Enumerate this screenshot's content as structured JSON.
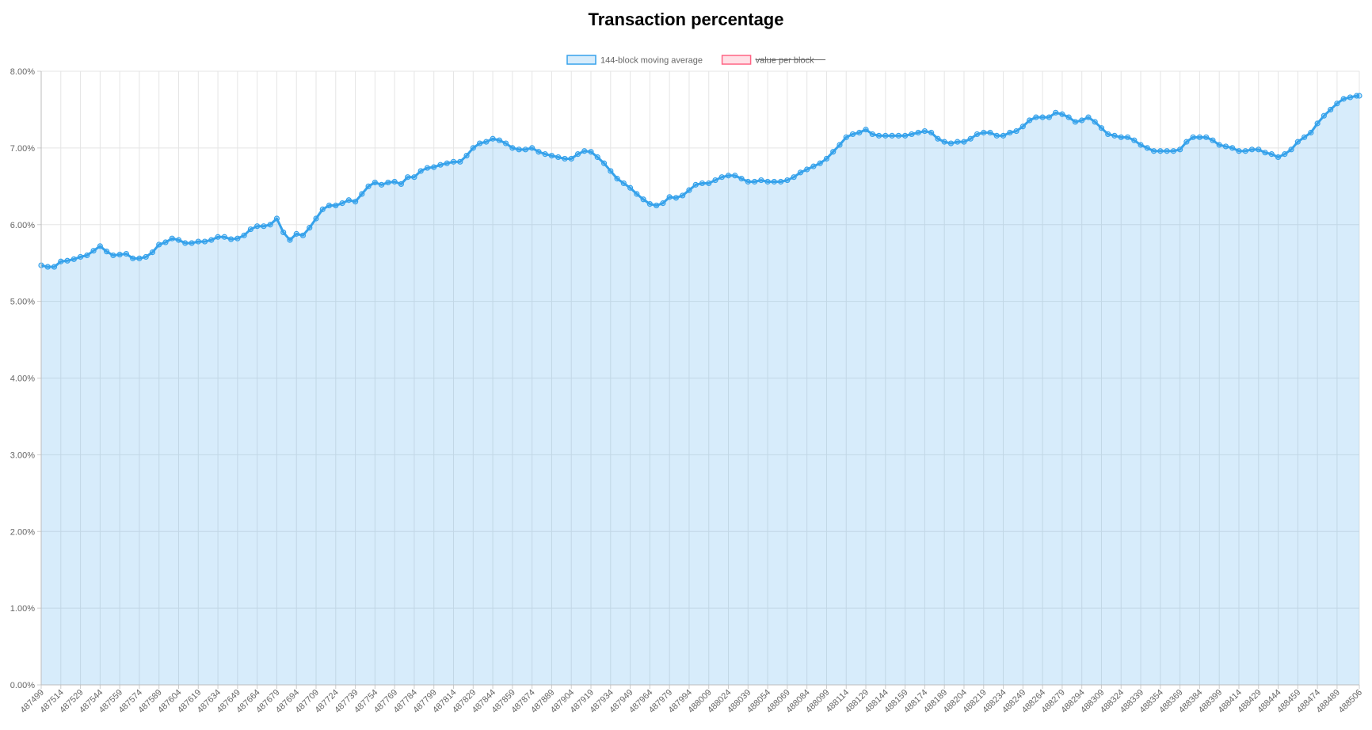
{
  "chart_data": {
    "type": "area",
    "title": "Transaction percentage",
    "legend": {
      "placement": "top-center",
      "items": [
        {
          "label": "144-block moving average",
          "color": "#36a2eb",
          "hidden": false
        },
        {
          "label": "value per block",
          "color": "#ff6384",
          "hidden": true
        }
      ]
    },
    "grid": true,
    "y_axis": {
      "min": 0,
      "max": 8,
      "step": 1,
      "format": "percent",
      "tick_labels": [
        "0.00%",
        "1.00%",
        "2.00%",
        "3.00%",
        "4.00%",
        "5.00%",
        "6.00%",
        "7.00%",
        "8.00%"
      ]
    },
    "x_axis": {
      "first_block": 487499,
      "last_block": 488506,
      "tick_step": 15,
      "tick_labels": [
        "487499",
        "487514",
        "487529",
        "487544",
        "487559",
        "487574",
        "487589",
        "487604",
        "487619",
        "487634",
        "487649",
        "487664",
        "487679",
        "487694",
        "487709",
        "487724",
        "487739",
        "487754",
        "487769",
        "487784",
        "487799",
        "487814",
        "487829",
        "487844",
        "487859",
        "487874",
        "487889",
        "487904",
        "487919",
        "487934",
        "487949",
        "487964",
        "487979",
        "487994",
        "488009",
        "488024",
        "488039",
        "488054",
        "488069",
        "488084",
        "488099",
        "488114",
        "488129",
        "488144",
        "488159",
        "488174",
        "488189",
        "488204",
        "488219",
        "488234",
        "488249",
        "488264",
        "488279",
        "488294",
        "488309",
        "488324",
        "488339",
        "488354",
        "488369",
        "488384",
        "488399",
        "488414",
        "488429",
        "488444",
        "488459",
        "488474",
        "488489",
        "488506"
      ]
    },
    "series": [
      {
        "name": "144-block moving average",
        "color": "#36a2eb",
        "fill": "rgba(54,162,235,0.2)",
        "points": [
          [
            487499,
            5.47
          ],
          [
            487504,
            5.45
          ],
          [
            487509,
            5.45
          ],
          [
            487514,
            5.52
          ],
          [
            487519,
            5.53
          ],
          [
            487524,
            5.55
          ],
          [
            487529,
            5.58
          ],
          [
            487534,
            5.6
          ],
          [
            487539,
            5.66
          ],
          [
            487544,
            5.72
          ],
          [
            487549,
            5.65
          ],
          [
            487554,
            5.6
          ],
          [
            487559,
            5.61
          ],
          [
            487564,
            5.62
          ],
          [
            487569,
            5.56
          ],
          [
            487574,
            5.56
          ],
          [
            487579,
            5.58
          ],
          [
            487584,
            5.64
          ],
          [
            487589,
            5.74
          ],
          [
            487594,
            5.77
          ],
          [
            487599,
            5.82
          ],
          [
            487604,
            5.8
          ],
          [
            487609,
            5.76
          ],
          [
            487614,
            5.76
          ],
          [
            487619,
            5.78
          ],
          [
            487624,
            5.78
          ],
          [
            487629,
            5.8
          ],
          [
            487634,
            5.84
          ],
          [
            487639,
            5.84
          ],
          [
            487644,
            5.81
          ],
          [
            487649,
            5.82
          ],
          [
            487654,
            5.86
          ],
          [
            487659,
            5.94
          ],
          [
            487664,
            5.98
          ],
          [
            487669,
            5.98
          ],
          [
            487674,
            6.0
          ],
          [
            487679,
            6.08
          ],
          [
            487684,
            5.9
          ],
          [
            487689,
            5.8
          ],
          [
            487694,
            5.88
          ],
          [
            487699,
            5.86
          ],
          [
            487704,
            5.96
          ],
          [
            487709,
            6.08
          ],
          [
            487714,
            6.2
          ],
          [
            487719,
            6.25
          ],
          [
            487724,
            6.25
          ],
          [
            487729,
            6.28
          ],
          [
            487734,
            6.32
          ],
          [
            487739,
            6.3
          ],
          [
            487744,
            6.4
          ],
          [
            487749,
            6.5
          ],
          [
            487754,
            6.55
          ],
          [
            487759,
            6.52
          ],
          [
            487764,
            6.55
          ],
          [
            487769,
            6.56
          ],
          [
            487774,
            6.53
          ],
          [
            487779,
            6.62
          ],
          [
            487784,
            6.62
          ],
          [
            487789,
            6.7
          ],
          [
            487794,
            6.74
          ],
          [
            487799,
            6.75
          ],
          [
            487804,
            6.78
          ],
          [
            487809,
            6.8
          ],
          [
            487814,
            6.82
          ],
          [
            487819,
            6.82
          ],
          [
            487824,
            6.9
          ],
          [
            487829,
            7.0
          ],
          [
            487834,
            7.06
          ],
          [
            487839,
            7.08
          ],
          [
            487844,
            7.12
          ],
          [
            487849,
            7.1
          ],
          [
            487854,
            7.06
          ],
          [
            487859,
            7.0
          ],
          [
            487864,
            6.98
          ],
          [
            487869,
            6.98
          ],
          [
            487874,
            7.0
          ],
          [
            487879,
            6.95
          ],
          [
            487884,
            6.92
          ],
          [
            487889,
            6.9
          ],
          [
            487894,
            6.88
          ],
          [
            487899,
            6.86
          ],
          [
            487904,
            6.86
          ],
          [
            487909,
            6.92
          ],
          [
            487914,
            6.96
          ],
          [
            487919,
            6.95
          ],
          [
            487924,
            6.88
          ],
          [
            487929,
            6.8
          ],
          [
            487934,
            6.7
          ],
          [
            487939,
            6.6
          ],
          [
            487944,
            6.54
          ],
          [
            487949,
            6.48
          ],
          [
            487954,
            6.4
          ],
          [
            487959,
            6.33
          ],
          [
            487964,
            6.27
          ],
          [
            487969,
            6.25
          ],
          [
            487974,
            6.28
          ],
          [
            487979,
            6.36
          ],
          [
            487984,
            6.35
          ],
          [
            487989,
            6.38
          ],
          [
            487994,
            6.45
          ],
          [
            487999,
            6.52
          ],
          [
            488004,
            6.54
          ],
          [
            488009,
            6.54
          ],
          [
            488014,
            6.58
          ],
          [
            488019,
            6.62
          ],
          [
            488024,
            6.64
          ],
          [
            488029,
            6.64
          ],
          [
            488034,
            6.6
          ],
          [
            488039,
            6.56
          ],
          [
            488044,
            6.56
          ],
          [
            488049,
            6.58
          ],
          [
            488054,
            6.56
          ],
          [
            488059,
            6.56
          ],
          [
            488064,
            6.56
          ],
          [
            488069,
            6.58
          ],
          [
            488074,
            6.62
          ],
          [
            488079,
            6.68
          ],
          [
            488084,
            6.72
          ],
          [
            488089,
            6.76
          ],
          [
            488094,
            6.8
          ],
          [
            488099,
            6.86
          ],
          [
            488104,
            6.95
          ],
          [
            488109,
            7.04
          ],
          [
            488114,
            7.14
          ],
          [
            488119,
            7.18
          ],
          [
            488124,
            7.2
          ],
          [
            488129,
            7.24
          ],
          [
            488134,
            7.18
          ],
          [
            488139,
            7.16
          ],
          [
            488144,
            7.16
          ],
          [
            488149,
            7.16
          ],
          [
            488154,
            7.16
          ],
          [
            488159,
            7.16
          ],
          [
            488164,
            7.18
          ],
          [
            488169,
            7.2
          ],
          [
            488174,
            7.22
          ],
          [
            488179,
            7.2
          ],
          [
            488184,
            7.12
          ],
          [
            488189,
            7.08
          ],
          [
            488194,
            7.06
          ],
          [
            488199,
            7.08
          ],
          [
            488204,
            7.08
          ],
          [
            488209,
            7.12
          ],
          [
            488214,
            7.18
          ],
          [
            488219,
            7.2
          ],
          [
            488224,
            7.2
          ],
          [
            488229,
            7.16
          ],
          [
            488234,
            7.16
          ],
          [
            488239,
            7.2
          ],
          [
            488244,
            7.22
          ],
          [
            488249,
            7.28
          ],
          [
            488254,
            7.36
          ],
          [
            488259,
            7.4
          ],
          [
            488264,
            7.4
          ],
          [
            488269,
            7.4
          ],
          [
            488274,
            7.46
          ],
          [
            488279,
            7.44
          ],
          [
            488284,
            7.4
          ],
          [
            488289,
            7.34
          ],
          [
            488294,
            7.36
          ],
          [
            488299,
            7.4
          ],
          [
            488304,
            7.34
          ],
          [
            488309,
            7.26
          ],
          [
            488314,
            7.18
          ],
          [
            488319,
            7.16
          ],
          [
            488324,
            7.14
          ],
          [
            488329,
            7.14
          ],
          [
            488334,
            7.1
          ],
          [
            488339,
            7.04
          ],
          [
            488344,
            7.0
          ],
          [
            488349,
            6.96
          ],
          [
            488354,
            6.96
          ],
          [
            488359,
            6.96
          ],
          [
            488364,
            6.96
          ],
          [
            488369,
            6.98
          ],
          [
            488374,
            7.08
          ],
          [
            488379,
            7.14
          ],
          [
            488384,
            7.14
          ],
          [
            488389,
            7.14
          ],
          [
            488394,
            7.1
          ],
          [
            488399,
            7.04
          ],
          [
            488404,
            7.02
          ],
          [
            488409,
            7.0
          ],
          [
            488414,
            6.96
          ],
          [
            488419,
            6.96
          ],
          [
            488424,
            6.98
          ],
          [
            488429,
            6.98
          ],
          [
            488434,
            6.94
          ],
          [
            488439,
            6.92
          ],
          [
            488444,
            6.88
          ],
          [
            488449,
            6.92
          ],
          [
            488454,
            6.98
          ],
          [
            488459,
            7.08
          ],
          [
            488464,
            7.14
          ],
          [
            488469,
            7.2
          ],
          [
            488474,
            7.32
          ],
          [
            488479,
            7.42
          ],
          [
            488484,
            7.5
          ],
          [
            488489,
            7.58
          ],
          [
            488494,
            7.64
          ],
          [
            488499,
            7.66
          ],
          [
            488504,
            7.68
          ],
          [
            488506,
            7.68
          ]
        ]
      }
    ]
  }
}
